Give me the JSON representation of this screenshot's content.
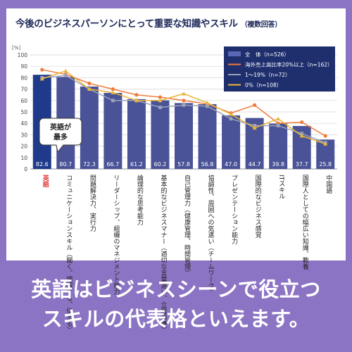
{
  "title": "今後のビジネスパーソンにとって重要な知識やスキル",
  "title_note": "（複数回答）",
  "callout": [
    "英語が",
    "最多"
  ],
  "caption": [
    "英語はビジネスシーンで役立つ",
    "スキルの代表格といえます。"
  ],
  "colors": {
    "background": "#8c74c4",
    "bar": "#4a5397",
    "bar_highlight": "#1f3a8a",
    "line_high": "#f07a3a",
    "line_low": "#9aa3b8",
    "line_zero": "#e8b53a",
    "legend_bg": "#1f2f6e",
    "highlight_label": "#e23a3a"
  },
  "chart_data": {
    "type": "bar",
    "ylabel": "[%]",
    "ylim": [
      0,
      100
    ],
    "yticks": [
      0,
      10,
      20,
      30,
      40,
      50,
      60,
      70,
      80,
      90,
      100
    ],
    "grid": true,
    "legend_position": "top-right",
    "categories": [
      "英語",
      "コミュニケーションスキル（聞く、理解する、伝える）",
      "問題解決力、実行力",
      "リーダーシップ、組織のマネジメント能力",
      "論理的な思考能力",
      "基本的なビジネスマナー（適切な言葉遣い、立居振舞）",
      "自己管理力（健康管理、時間管理）",
      "協調性、周囲への気遣い（チームワーク）",
      "プレゼンテーション能力",
      "国際的なビジネス感覚",
      "ITスキル",
      "国際人としての幅広い知識、教養",
      "中国語"
    ],
    "series": [
      {
        "name": "全　体（n=526）",
        "kind": "bar",
        "values": [
          82.6,
          80.7,
          72.3,
          66.7,
          61.2,
          60.2,
          57.8,
          56.8,
          47.0,
          44.7,
          39.8,
          37.7,
          25.8
        ],
        "value_labels": [
          "82.6",
          "80.7",
          "72.3",
          "66.7",
          "61.2",
          "60.2",
          "57.8",
          "56.8",
          "47.0",
          "44.7",
          "39.8",
          "37.7",
          "25.8"
        ]
      },
      {
        "name": "海外売上高比率20%以上（n=162）",
        "kind": "line",
        "values": [
          87,
          83,
          75,
          70,
          65,
          63,
          60,
          57,
          49,
          56,
          40,
          41,
          29
        ]
      },
      {
        "name": "1～19%（n=72）",
        "kind": "line",
        "values": [
          80,
          82,
          70,
          60,
          60,
          54,
          56,
          55,
          44,
          38,
          38,
          31,
          23
        ]
      },
      {
        "name": "0%（n=108）",
        "kind": "line",
        "values": [
          79,
          86,
          70,
          67,
          60,
          60,
          66,
          58,
          48,
          36,
          44,
          29,
          22
        ]
      }
    ]
  }
}
